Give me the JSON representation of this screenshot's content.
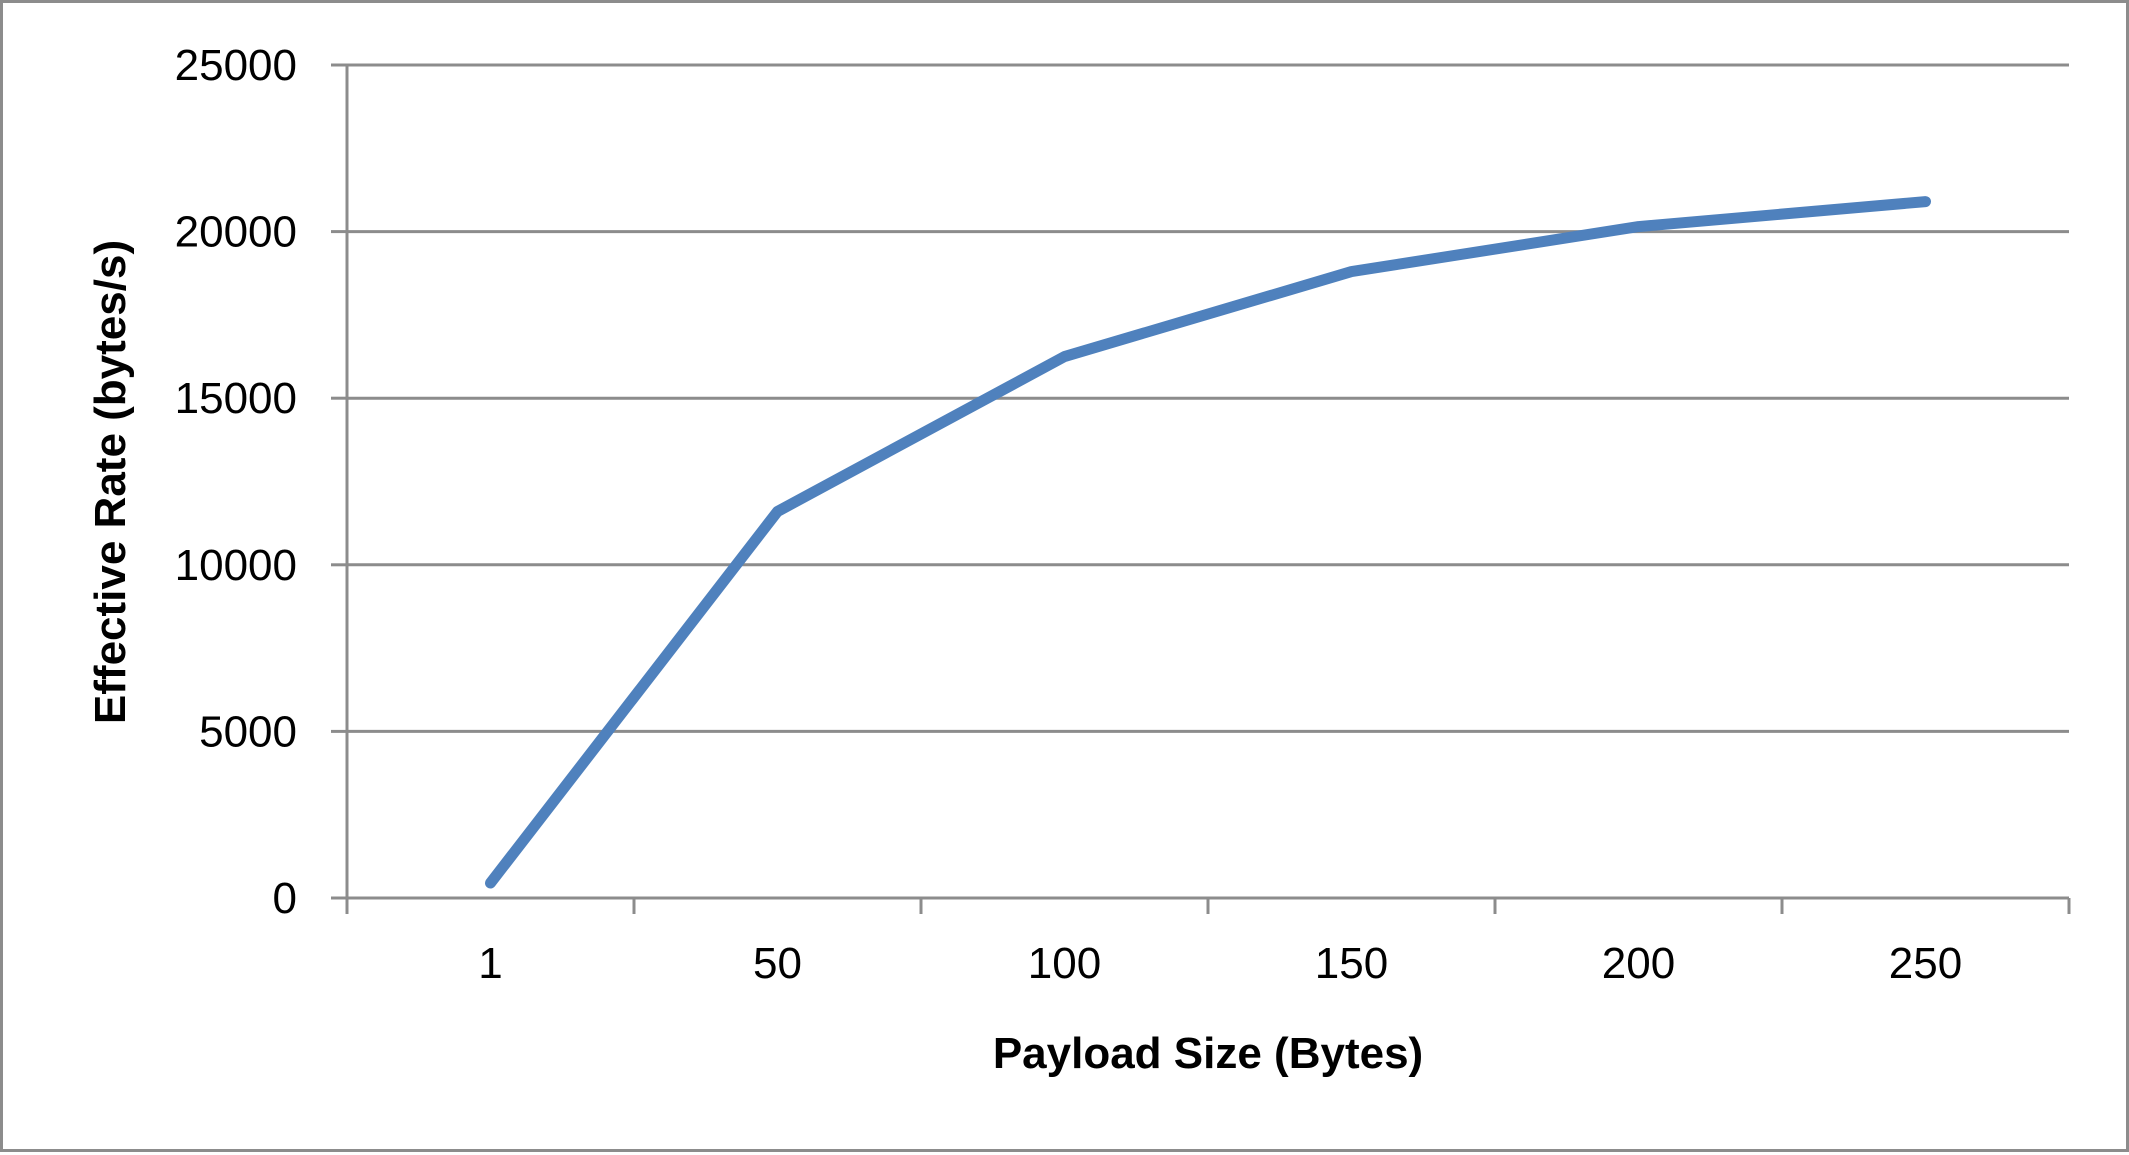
{
  "chart_data": {
    "type": "line",
    "title": "",
    "xlabel": "Payload Size (Bytes)",
    "ylabel": "Effective Rate (bytes/s)",
    "categories": [
      "1",
      "50",
      "100",
      "150",
      "200",
      "250"
    ],
    "series": [
      {
        "values": [
          450,
          11600,
          16250,
          18800,
          20150,
          20900
        ]
      }
    ],
    "ylim": [
      0,
      25000
    ],
    "yticks": [
      "0",
      "5000",
      "10000",
      "15000",
      "20000",
      "25000"
    ],
    "grid": true,
    "legend": "none",
    "colors": {
      "line": "#4f81bd",
      "grid": "#8c8c8c",
      "axis": "#8c8c8c",
      "border": "#8c8c8c"
    }
  }
}
